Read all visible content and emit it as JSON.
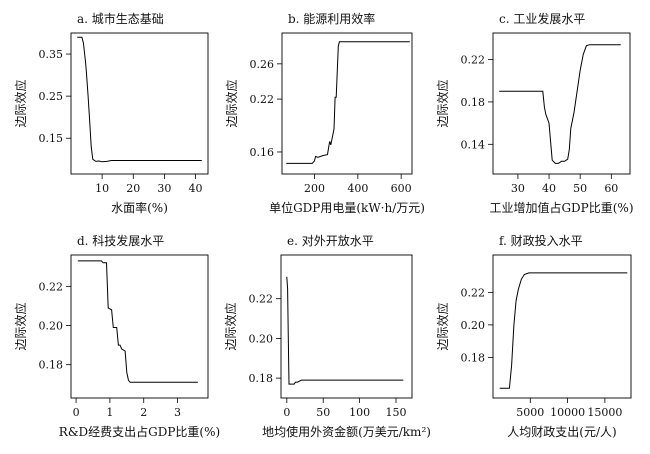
{
  "chart_data": [
    {
      "type": "line",
      "title": "a. 城市生态基础",
      "xlabel": "水面率(%)",
      "ylabel": "边际效应",
      "xlim": [
        0,
        44
      ],
      "ylim": [
        0.065,
        0.4
      ],
      "xticks": [
        {
          "v": 10,
          "label": "10"
        },
        {
          "v": 20,
          "label": "20"
        },
        {
          "v": 30,
          "label": "30"
        },
        {
          "v": 40,
          "label": "40"
        }
      ],
      "yticks": [
        {
          "v": 0.15,
          "label": "0.15"
        },
        {
          "v": 0.25,
          "label": "0.25"
        },
        {
          "v": 0.35,
          "label": "0.35"
        }
      ],
      "x": [
        2.0,
        3.5,
        4.0,
        4.3,
        4.7,
        5.0,
        5.5,
        6.0,
        6.5,
        7.0,
        8.0,
        9.0,
        10.0,
        11.5,
        13.0,
        20.0,
        30.0,
        42.0
      ],
      "y": [
        0.39,
        0.39,
        0.375,
        0.355,
        0.33,
        0.3,
        0.25,
        0.19,
        0.13,
        0.1,
        0.095,
        0.096,
        0.094,
        0.095,
        0.097,
        0.097,
        0.097,
        0.097
      ]
    },
    {
      "type": "line",
      "title": "b. 能源利用效率",
      "xlabel": "单位GDP用电量(kW·h/万元)",
      "ylabel": "边际效应",
      "xlim": [
        50,
        650
      ],
      "ylim": [
        0.135,
        0.295
      ],
      "xticks": [
        {
          "v": 200,
          "label": "200"
        },
        {
          "v": 400,
          "label": "400"
        },
        {
          "v": 600,
          "label": "600"
        }
      ],
      "yticks": [
        {
          "v": 0.16,
          "label": "0.16"
        },
        {
          "v": 0.22,
          "label": "0.22"
        },
        {
          "v": 0.26,
          "label": "0.26"
        }
      ],
      "x": [
        70,
        190,
        200,
        205,
        215,
        240,
        260,
        265,
        270,
        275,
        290,
        295,
        300,
        310,
        315,
        320,
        640
      ],
      "y": [
        0.147,
        0.147,
        0.15,
        0.155,
        0.154,
        0.156,
        0.157,
        0.165,
        0.172,
        0.168,
        0.186,
        0.222,
        0.222,
        0.28,
        0.285,
        0.285,
        0.285
      ]
    },
    {
      "type": "line",
      "title": "c. 工业发展水平",
      "xlabel": "工业增加值占GDP比重(%)",
      "ylabel": "边际效应",
      "xlim": [
        22,
        66
      ],
      "ylim": [
        0.112,
        0.245
      ],
      "xticks": [
        {
          "v": 30,
          "label": "30"
        },
        {
          "v": 40,
          "label": "40"
        },
        {
          "v": 50,
          "label": "50"
        },
        {
          "v": 60,
          "label": "60"
        }
      ],
      "yticks": [
        {
          "v": 0.14,
          "label": "0.14"
        },
        {
          "v": 0.18,
          "label": "0.18"
        },
        {
          "v": 0.22,
          "label": "0.22"
        }
      ],
      "x": [
        24,
        38,
        38.5,
        39,
        40,
        41,
        42,
        43,
        44,
        45,
        46,
        46.5,
        47,
        48,
        49,
        50,
        51,
        52,
        53,
        63
      ],
      "y": [
        0.19,
        0.19,
        0.175,
        0.168,
        0.16,
        0.125,
        0.122,
        0.122,
        0.124,
        0.124,
        0.126,
        0.135,
        0.155,
        0.17,
        0.19,
        0.21,
        0.225,
        0.233,
        0.234,
        0.234
      ]
    },
    {
      "type": "line",
      "title": "d. 科技发展水平",
      "xlabel": "R&D经费支出占GDP比重(%)",
      "ylabel": "边际效应",
      "xlim": [
        -0.15,
        3.9
      ],
      "ylim": [
        0.163,
        0.236
      ],
      "xticks": [
        {
          "v": 0,
          "label": "0"
        },
        {
          "v": 1,
          "label": "1"
        },
        {
          "v": 2,
          "label": "2"
        },
        {
          "v": 3,
          "label": "3"
        }
      ],
      "yticks": [
        {
          "v": 0.18,
          "label": "0.18"
        },
        {
          "v": 0.2,
          "label": "0.20"
        },
        {
          "v": 0.22,
          "label": "0.22"
        }
      ],
      "x": [
        0.05,
        0.75,
        0.8,
        0.9,
        0.95,
        1.05,
        1.1,
        1.2,
        1.25,
        1.3,
        1.35,
        1.45,
        1.5,
        1.55,
        1.6,
        3.6
      ],
      "y": [
        0.233,
        0.233,
        0.232,
        0.232,
        0.209,
        0.208,
        0.199,
        0.199,
        0.19,
        0.19,
        0.188,
        0.187,
        0.176,
        0.172,
        0.171,
        0.171
      ]
    },
    {
      "type": "line",
      "title": "e. 对外开放水平",
      "xlabel": "地均使用外资金额(万美元/km²)",
      "ylabel": "边际效应",
      "xlim": [
        -8,
        172
      ],
      "ylim": [
        0.17,
        0.242
      ],
      "xticks": [
        {
          "v": 0,
          "label": "0"
        },
        {
          "v": 50,
          "label": "50"
        },
        {
          "v": 100,
          "label": "100"
        },
        {
          "v": 150,
          "label": "150"
        }
      ],
      "yticks": [
        {
          "v": 0.18,
          "label": "0.18"
        },
        {
          "v": 0.2,
          "label": "0.20"
        },
        {
          "v": 0.22,
          "label": "0.22"
        }
      ],
      "x": [
        0,
        1,
        2,
        3,
        5,
        10,
        12,
        15,
        20,
        160
      ],
      "y": [
        0.231,
        0.225,
        0.2,
        0.177,
        0.177,
        0.177,
        0.178,
        0.178,
        0.179,
        0.179
      ]
    },
    {
      "type": "line",
      "title": "f. 财政投入水平",
      "xlabel": "人均财政支出(元/人)",
      "ylabel": "边际效应",
      "xlim": [
        0,
        18500
      ],
      "ylim": [
        0.155,
        0.243
      ],
      "xticks": [
        {
          "v": 5000,
          "label": "5000"
        },
        {
          "v": 10000,
          "label": "10000"
        },
        {
          "v": 15000,
          "label": "15000"
        }
      ],
      "yticks": [
        {
          "v": 0.18,
          "label": "0.18"
        },
        {
          "v": 0.2,
          "label": "0.20"
        },
        {
          "v": 0.22,
          "label": "0.22"
        }
      ],
      "x": [
        900,
        2200,
        2500,
        2800,
        3100,
        3400,
        3800,
        4200,
        4800,
        18000
      ],
      "y": [
        0.161,
        0.161,
        0.175,
        0.2,
        0.215,
        0.222,
        0.228,
        0.231,
        0.232,
        0.232
      ]
    }
  ]
}
